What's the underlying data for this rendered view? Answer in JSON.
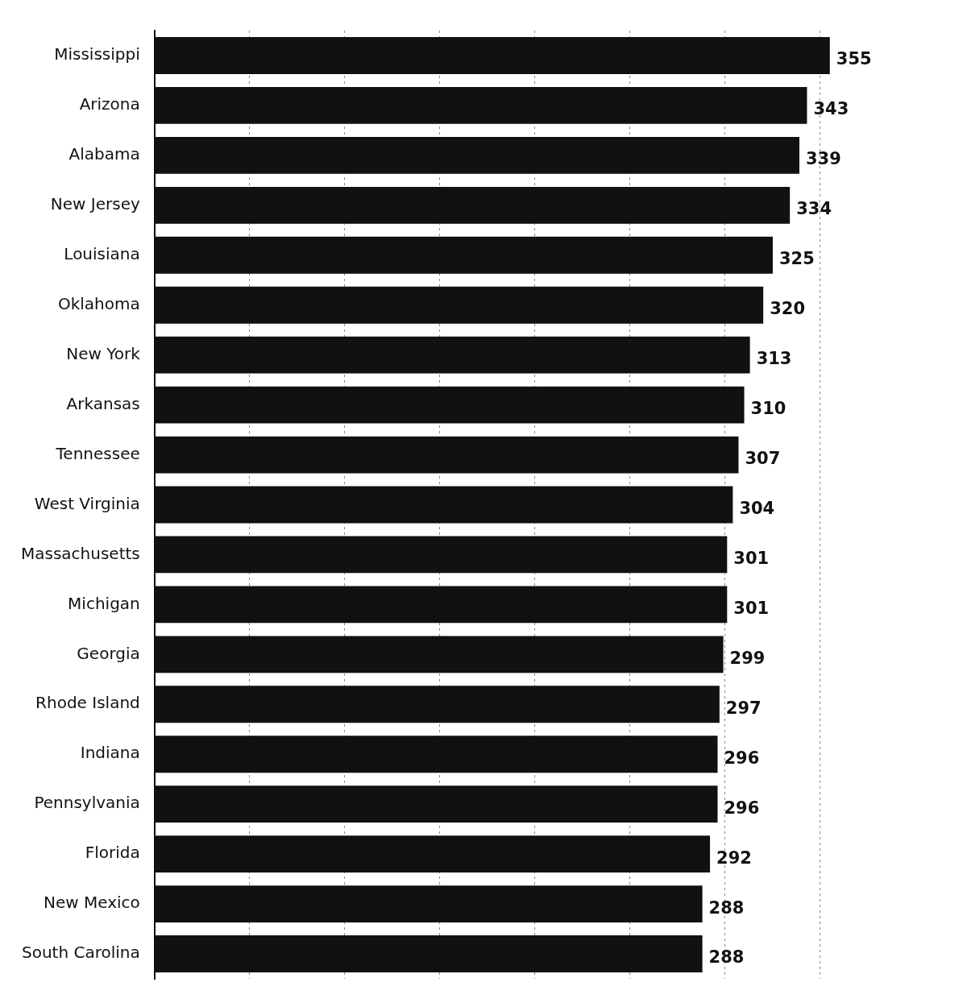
{
  "chart_data": {
    "type": "bar",
    "orientation": "horizontal",
    "categories": [
      "Mississippi",
      "Arizona",
      "Alabama",
      "New Jersey",
      "Louisiana",
      "Oklahoma",
      "New York",
      "Arkansas",
      "Tennessee",
      "West Virginia",
      "Massachusetts",
      "Michigan",
      "Georgia",
      "Rhode Island",
      "Indiana",
      "Pennsylvania",
      "Florida",
      "New Mexico",
      "South Carolina"
    ],
    "values": [
      355,
      343,
      339,
      334,
      325,
      320,
      313,
      310,
      307,
      304,
      301,
      301,
      299,
      297,
      296,
      296,
      292,
      288,
      288
    ],
    "color": "#111111",
    "data_labels": true,
    "xticks": [
      {
        "value": 50,
        "label": null
      },
      {
        "value": 100,
        "label": null
      },
      {
        "value": 150,
        "label": null
      },
      {
        "value": 200,
        "label": null
      },
      {
        "value": 250,
        "label": null
      },
      {
        "value": 300,
        "label": null
      },
      {
        "value": 350,
        "label": null
      }
    ],
    "grid": "x",
    "tick_labels": "y"
  }
}
